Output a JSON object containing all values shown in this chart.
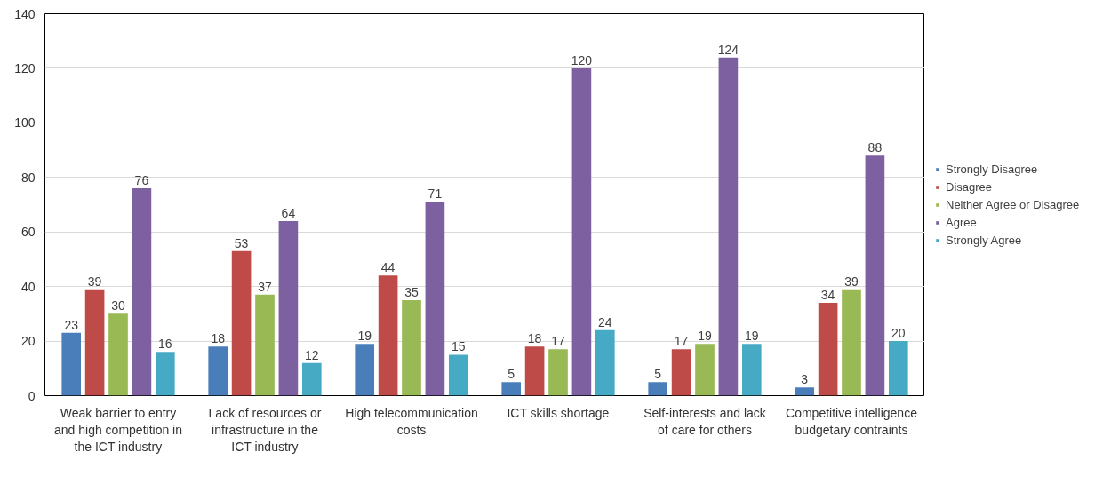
{
  "chart_data": {
    "type": "bar",
    "categories": [
      "Weak barrier to entry and high competition in the ICT industry",
      "Lack of resources or infrastructure in the ICT industry",
      "High telecommunication costs",
      "ICT skills shortage",
      "Self-interests and lack of care for others",
      "Competitive intelligence budgetary contraints"
    ],
    "series": [
      {
        "name": "Strongly Disagree",
        "color": "#4a7ebb",
        "values": [
          23,
          18,
          19,
          5,
          5,
          3
        ]
      },
      {
        "name": "Disagree",
        "color": "#be4b48",
        "values": [
          39,
          53,
          44,
          18,
          17,
          34
        ]
      },
      {
        "name": "Neither Agree or Disagree",
        "color": "#98b954",
        "values": [
          30,
          37,
          35,
          17,
          19,
          39
        ]
      },
      {
        "name": "Agree",
        "color": "#7d60a0",
        "values": [
          76,
          64,
          71,
          120,
          124,
          88
        ]
      },
      {
        "name": "Strongly Agree",
        "color": "#46aac5",
        "values": [
          16,
          12,
          15,
          24,
          19,
          20
        ]
      }
    ],
    "ylim": [
      0,
      140
    ],
    "yticks": [
      0,
      20,
      40,
      60,
      80,
      100,
      120,
      140
    ],
    "grid": "y",
    "legend": "right",
    "data_labels": true
  }
}
